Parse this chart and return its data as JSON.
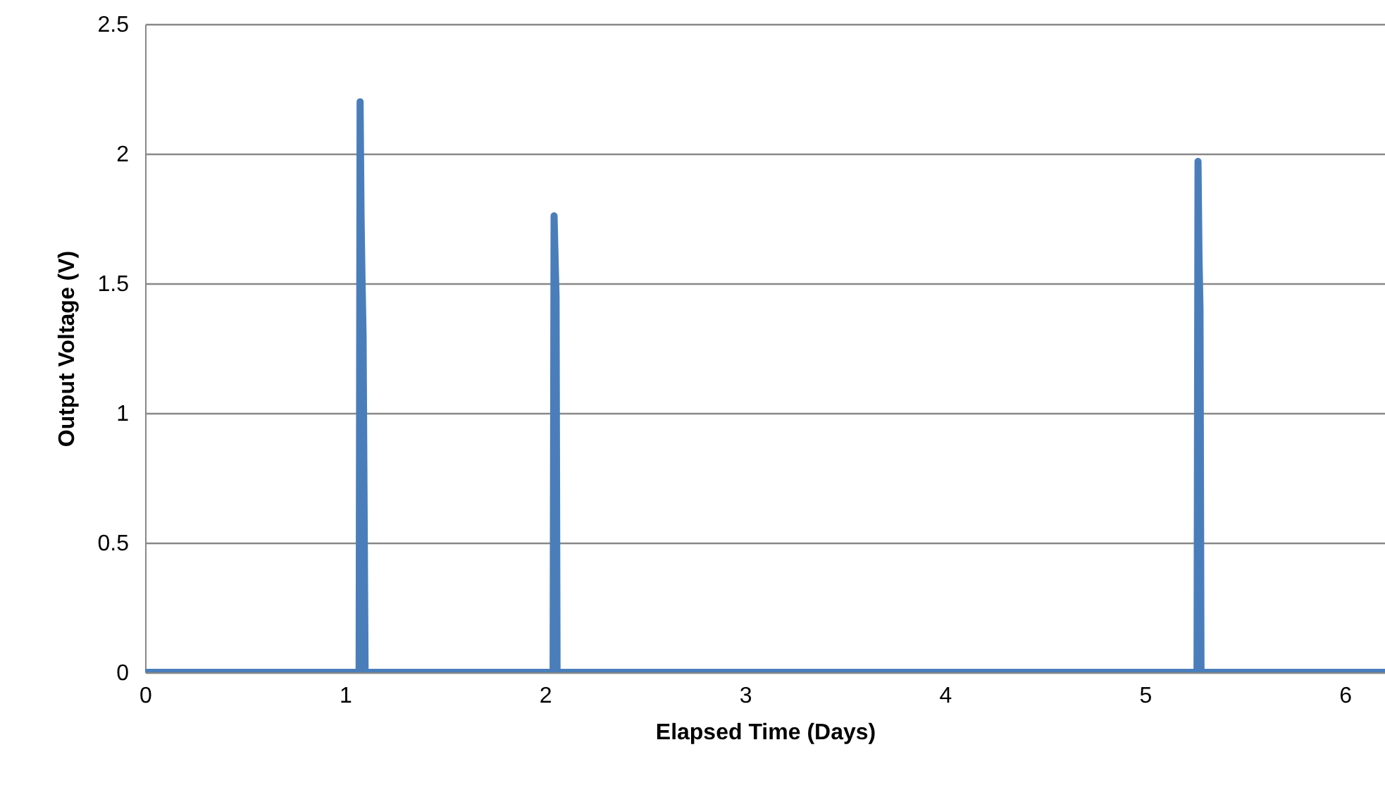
{
  "chart_data": {
    "type": "line",
    "xlabel": "Elapsed Time (Days)",
    "ylabel": "Output Voltage (V)",
    "xlim": [
      0,
      6.2
    ],
    "xticks": [
      0,
      1,
      2,
      3,
      4,
      5,
      6
    ],
    "ylim": [
      0,
      2.5
    ],
    "yticks": [
      0,
      0.5,
      1,
      1.5,
      2,
      2.5
    ],
    "grid": "y",
    "line_style": "solid",
    "series": [
      {
        "color": "#4a7ebb",
        "x": [
          0,
          1.07,
          1.075,
          1.08,
          1.085,
          1.09,
          1.1,
          2.04,
          2.045,
          2.05,
          2.055,
          2.06,
          5.26,
          5.265,
          5.27,
          5.275,
          5.28,
          6.2
        ],
        "values": [
          0,
          0,
          2.2,
          1.75,
          1.5,
          1.3,
          0,
          0,
          1.76,
          1.6,
          1.45,
          0,
          0,
          1.97,
          1.6,
          1.4,
          0,
          0
        ]
      }
    ]
  }
}
